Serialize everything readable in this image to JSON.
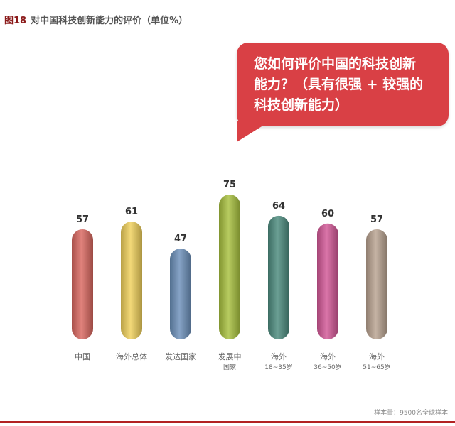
{
  "figure": {
    "number": "图18",
    "title": "对中国科技创新能力的评价（单位%）"
  },
  "callout": {
    "lines": [
      "您如何评价中国的科技创新",
      "能力？（具有很强 + 较强的",
      "科技创新能力）"
    ]
  },
  "chart_data": {
    "type": "bar",
    "categories": [
      [
        "中国"
      ],
      [
        "海外总体"
      ],
      [
        "发达国家"
      ],
      [
        "发展中",
        "国家"
      ],
      [
        "海外",
        "18~35岁"
      ],
      [
        "海外",
        "36~50岁"
      ],
      [
        "海外",
        "51~65岁"
      ]
    ],
    "values": [
      57,
      61,
      47,
      75,
      64,
      60,
      57
    ],
    "colors": [
      "#d9675f",
      "#efcf5a",
      "#6b8fb9",
      "#a7bf3d",
      "#4b8a7d",
      "#d25796",
      "#b8a290"
    ],
    "unit": "%",
    "ylim": [
      0,
      100
    ],
    "grid": false,
    "legend": "none"
  },
  "footer": {
    "sample_note": "样本量：9500名全球样本"
  }
}
